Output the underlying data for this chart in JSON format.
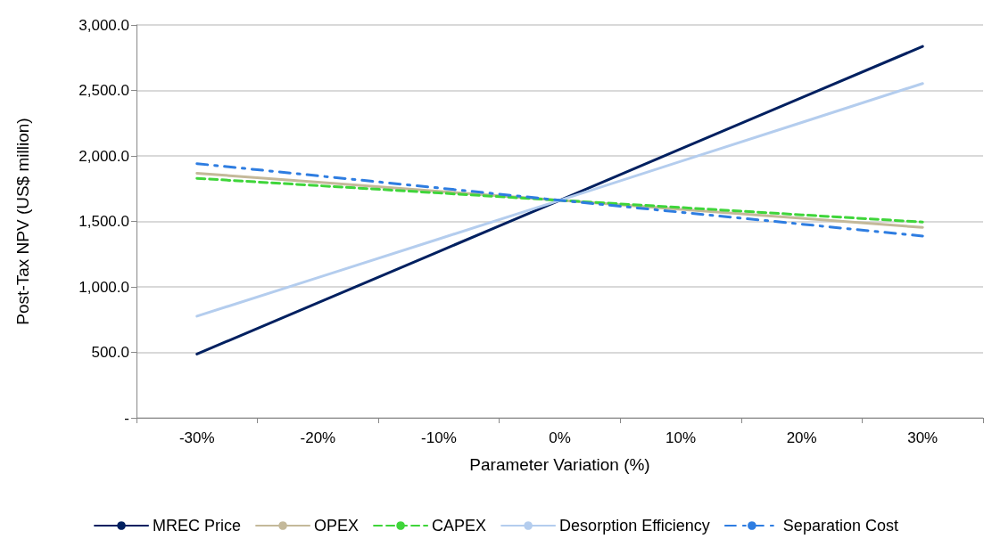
{
  "chart_data": {
    "type": "line",
    "xlabel": "Parameter Variation (%)",
    "ylabel": "Post-Tax NPV (US$ million)",
    "categories": [
      "-30%",
      "-20%",
      "-10%",
      "0%",
      "10%",
      "20%",
      "30%"
    ],
    "series": [
      {
        "name": "MREC Price",
        "color": "#002060",
        "line_style": "solid",
        "values": [
          487,
          879,
          1270,
          1661,
          2053,
          2444,
          2836
        ]
      },
      {
        "name": "OPEX",
        "color": "#c4b99a",
        "line_style": "solid",
        "values": [
          1868,
          1799,
          1730,
          1661,
          1592,
          1523,
          1454
        ]
      },
      {
        "name": "CAPEX",
        "color": "#3fd53a",
        "line_style": "dashed",
        "values": [
          1829,
          1773,
          1717,
          1661,
          1606,
          1550,
          1495
        ]
      },
      {
        "name": "Desorption Efficiency",
        "color": "#b4cdee",
        "line_style": "solid",
        "values": [
          776,
          1071,
          1366,
          1661,
          1958,
          2255,
          2553
        ]
      },
      {
        "name": "Separation Cost",
        "color": "#2e7de1",
        "line_style": "dashdot",
        "values": [
          1941,
          1848,
          1755,
          1661,
          1570,
          1479,
          1388
        ]
      }
    ],
    "ylim": [
      0,
      3000
    ],
    "yticks": [
      {
        "value": 0,
        "label": "-"
      },
      {
        "value": 500,
        "label": "500.0"
      },
      {
        "value": 1000,
        "label": "1,000.0"
      },
      {
        "value": 1500,
        "label": "1,500.0"
      },
      {
        "value": 2000,
        "label": "2,000.0"
      },
      {
        "value": 2500,
        "label": "2,500.0"
      },
      {
        "value": 3000,
        "label": "3,000.0"
      }
    ],
    "grid": "y",
    "legend": "bottom",
    "marker": "none"
  }
}
